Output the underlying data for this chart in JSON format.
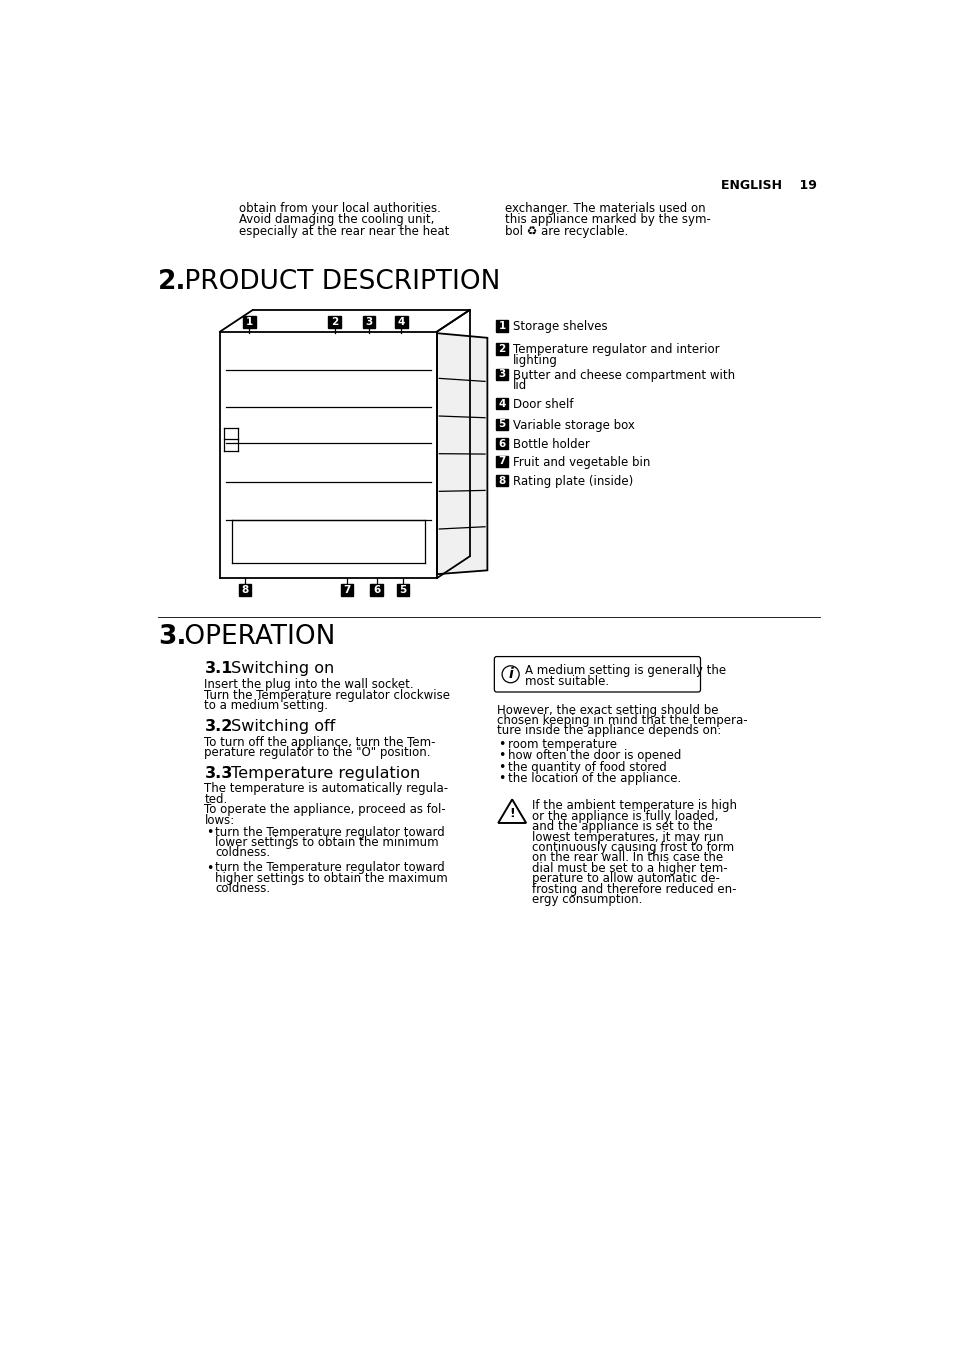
{
  "bg_color": "#ffffff",
  "page_header": "ENGLISH    19",
  "top_left_text": [
    "obtain from your local authorities.",
    "Avoid damaging the cooling unit,",
    "especially at the rear near the heat"
  ],
  "top_right_text": [
    "exchanger. The materials used on",
    "this appliance marked by the sym-",
    "bol ♻ are recyclable."
  ],
  "section2_bold": "2.",
  "section2_light": " PRODUCT DESCRIPTION",
  "legend_items": [
    [
      "1",
      "Storage shelves"
    ],
    [
      "2",
      "Temperature regulator and interior\nlighting"
    ],
    [
      "3",
      "Butter and cheese compartment with\nlid"
    ],
    [
      "4",
      "Door shelf"
    ],
    [
      "5",
      "Variable storage box"
    ],
    [
      "6",
      "Bottle holder"
    ],
    [
      "7",
      "Fruit and vegetable bin"
    ],
    [
      "8",
      "Rating plate (inside)"
    ]
  ],
  "section3_bold": "3.",
  "section3_light": " OPERATION",
  "sub31_bold": "3.1",
  "sub31_light": " Switching on",
  "sub31_body": [
    "Insert the plug into the wall socket.",
    "Turn the Temperature regulator clockwise",
    "to a medium setting."
  ],
  "sub32_bold": "3.2",
  "sub32_light": " Switching off",
  "sub32_body": [
    "To turn off the appliance, turn the Tem-",
    "perature regulator to the \"O\" position."
  ],
  "sub33_bold": "3.3",
  "sub33_light": " Temperature regulation",
  "sub33_body": [
    "The temperature is automatically regula-",
    "ted.",
    "To operate the appliance, proceed as fol-",
    "lows:"
  ],
  "sub33_bullets": [
    [
      "turn the Temperature regulator toward",
      "lower settings to obtain the minimum",
      "coldness."
    ],
    [
      "turn the Temperature regulator toward",
      "higher settings to obtain the maximum",
      "coldness."
    ]
  ],
  "info_text": [
    "A medium setting is generally the",
    "most suitable."
  ],
  "right_body": [
    "However, the exact setting should be",
    "chosen keeping in mind that the tempera-",
    "ture inside the appliance depends on:"
  ],
  "right_bullets": [
    "room temperature",
    "how often the door is opened",
    "the quantity of food stored",
    "the location of the appliance."
  ],
  "warn_text": [
    "If the ambient temperature is high",
    "or the appliance is fully loaded,",
    "and the appliance is set to the",
    "lowest temperatures, it may run",
    "continuously causing frost to form",
    "on the rear wall. In this case the",
    "dial must be set to a higher tem-",
    "perature to allow automatic de-",
    "frosting and therefore reduced en-",
    "ergy consumption."
  ],
  "lh": 13.5,
  "fs_body": 8.5,
  "fs_section": 19,
  "fs_sub": 11.5
}
